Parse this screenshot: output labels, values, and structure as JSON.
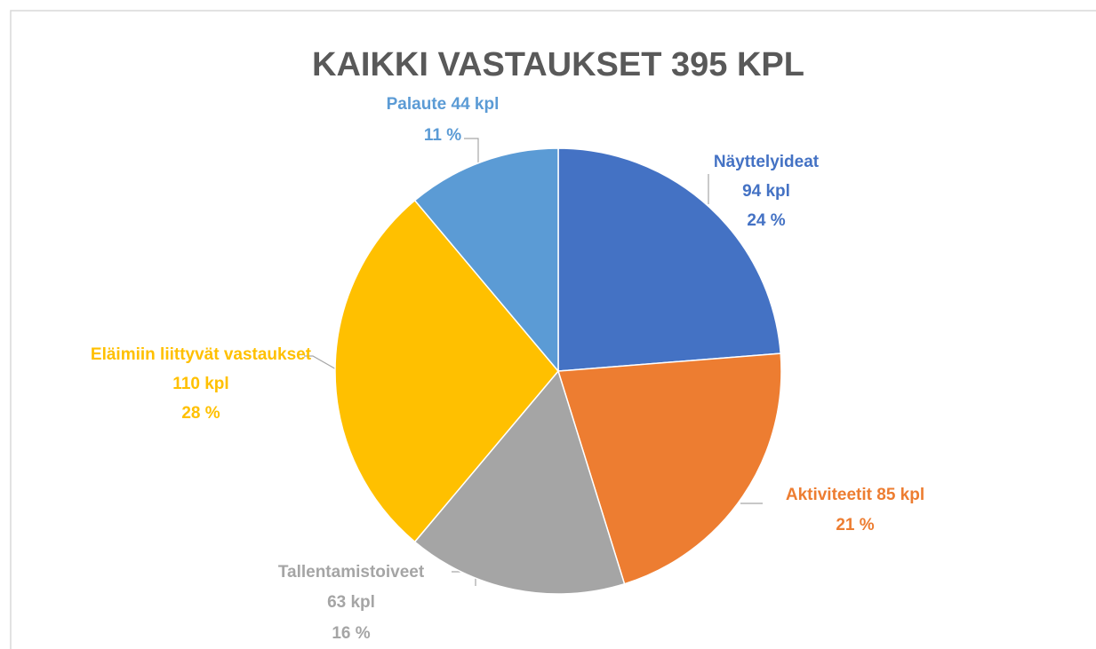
{
  "chart_data": {
    "type": "pie",
    "title": "KAIKKI VASTAUKSET 395 KPL",
    "categories": [
      "Näyttelyideat",
      "Aktiviteetit",
      "Tallentamistoiveet",
      "Eläimiin liittyvät vastaukset",
      "Palaute"
    ],
    "values": [
      94,
      85,
      63,
      110,
      44
    ],
    "value_labels": [
      "94 kpl",
      "85 kpl",
      "63 kpl",
      "110 kpl",
      "44 kpl"
    ],
    "percentages": [
      24,
      21,
      16,
      28,
      11
    ],
    "percentage_labels": [
      "24 %",
      "21 %",
      "16 %",
      "28 %",
      "11 %"
    ],
    "colors": [
      "#4472c4",
      "#ed7d31",
      "#a5a5a5",
      "#ffc000",
      "#5b9bd5"
    ]
  }
}
